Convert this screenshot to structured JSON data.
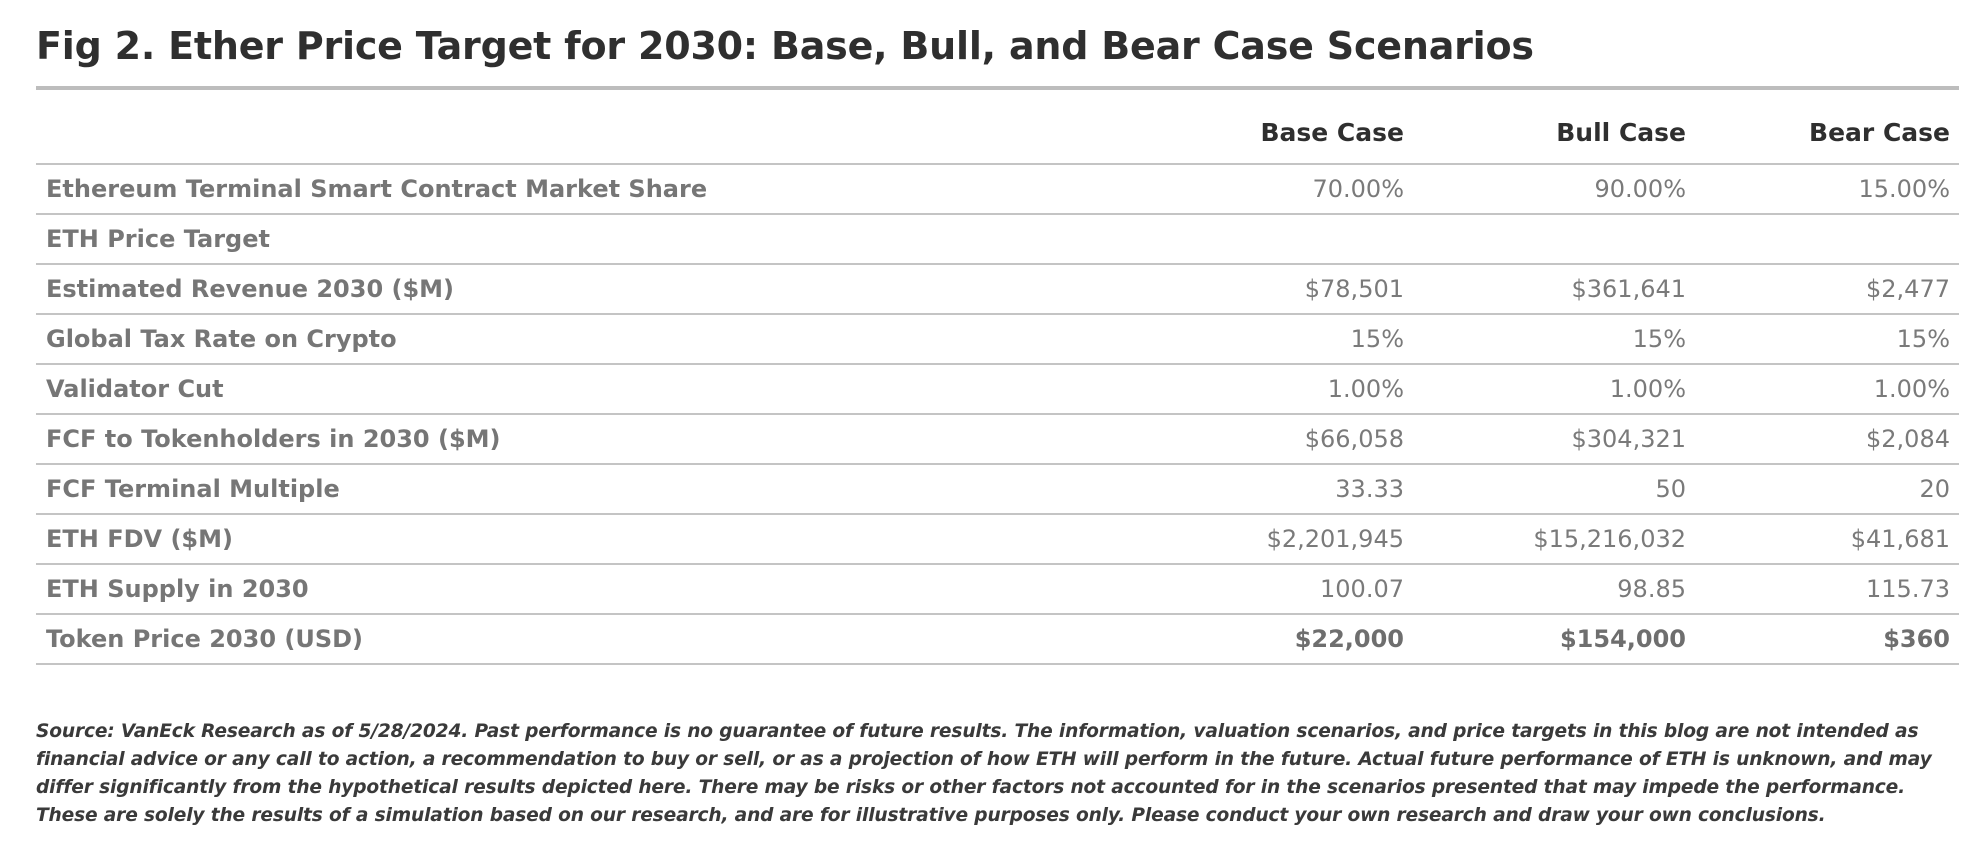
{
  "figure": {
    "title": "Fig 2. Ether Price Target for 2030: Base, Bull, and Bear Case Scenarios"
  },
  "table": {
    "headers": {
      "base": "Base Case",
      "bull": "Bull Case",
      "bear": "Bear Case"
    },
    "rows": [
      {
        "label": "Ethereum Terminal Smart Contract Market Share",
        "base": "70.00%",
        "bull": "90.00%",
        "bear": "15.00%"
      },
      {
        "label": "ETH Price Target",
        "base": "",
        "bull": "",
        "bear": ""
      },
      {
        "label": "Estimated Revenue 2030 ($M)",
        "base": "$78,501",
        "bull": "$361,641",
        "bear": "$2,477"
      },
      {
        "label": "Global Tax Rate on Crypto",
        "base": "15%",
        "bull": "15%",
        "bear": "15%"
      },
      {
        "label": "Validator Cut",
        "base": "1.00%",
        "bull": "1.00%",
        "bear": "1.00%"
      },
      {
        "label": "FCF to Tokenholders in 2030 ($M)",
        "base": "$66,058",
        "bull": "$304,321",
        "bear": "$2,084"
      },
      {
        "label": "FCF Terminal Multiple",
        "base": "33.33",
        "bull": "50",
        "bear": "20"
      },
      {
        "label": "ETH FDV ($M)",
        "base": "$2,201,945",
        "bull": "$15,216,032",
        "bear": "$41,681"
      },
      {
        "label": "ETH Supply in 2030",
        "base": "100.07",
        "bull": "98.85",
        "bear": "115.73"
      },
      {
        "label": "Token Price 2030 (USD)",
        "base": "$22,000",
        "bull": "$154,000",
        "bear": "$360"
      }
    ]
  },
  "footnote": "Source: VanEck Research as of 5/28/2024. Past performance is no guarantee of future results. The information, valuation scenarios, and price targets in this blog are not intended as financial advice or any call to action, a recommendation to buy or sell, or as a projection of how ETH will perform in the future. Actual future performance of ETH is unknown, and may differ significantly from the hypothetical results depicted here. There may be risks or other factors not accounted for in the scenarios presented that may impede the performance. These are solely the results of a simulation based on our research, and are for illustrative purposes only. Please conduct your own research and draw your own conclusions."
}
